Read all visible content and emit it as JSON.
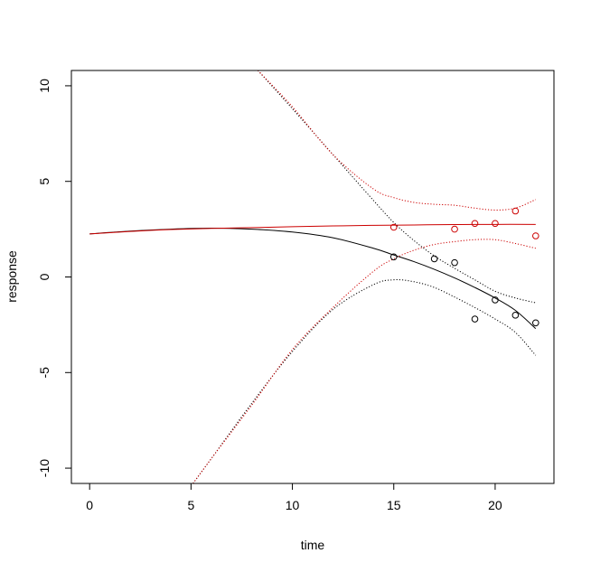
{
  "chart_data": {
    "type": "scatter",
    "title": "",
    "xlabel": "time",
    "ylabel": "response",
    "xlim": [
      -0.9,
      22.9
    ],
    "ylim": [
      -10.8,
      10.8
    ],
    "x_ticks": [
      0,
      5,
      10,
      15,
      20
    ],
    "y_ticks": [
      -10,
      -5,
      0,
      5,
      10
    ],
    "x_tick_labels": [
      "0",
      "5",
      "10",
      "15",
      "20"
    ],
    "y_tick_labels": [
      "-10",
      "-5",
      "0",
      "5",
      "10"
    ],
    "grid": false,
    "legend": "none",
    "colors": {
      "black": "#000000",
      "red": "#cc0000"
    },
    "series": [
      {
        "kind": "points",
        "color": "#000000",
        "x": [
          15,
          17,
          18,
          19,
          20,
          21,
          22
        ],
        "y": [
          1.05,
          0.95,
          0.75,
          -2.2,
          -1.2,
          -2.0,
          -2.4
        ]
      },
      {
        "kind": "points",
        "color": "#cc0000",
        "x": [
          15,
          18,
          19,
          20,
          21,
          22
        ],
        "y": [
          2.6,
          2.5,
          2.8,
          2.8,
          3.45,
          2.15
        ]
      },
      {
        "kind": "line",
        "style": "solid",
        "color": "#000000",
        "x": [
          0,
          2,
          4,
          6,
          8,
          10,
          12,
          14,
          15,
          16,
          17,
          18,
          19,
          20,
          21,
          22
        ],
        "y": [
          2.25,
          2.4,
          2.5,
          2.55,
          2.5,
          2.35,
          2.05,
          1.5,
          1.15,
          0.8,
          0.4,
          -0.05,
          -0.55,
          -1.1,
          -1.75,
          -2.7
        ]
      },
      {
        "kind": "line",
        "style": "solid",
        "color": "#cc0000",
        "x": [
          0,
          2,
          4,
          6,
          8,
          10,
          12,
          14,
          16,
          18,
          20,
          22
        ],
        "y": [
          2.25,
          2.38,
          2.48,
          2.54,
          2.58,
          2.63,
          2.67,
          2.7,
          2.72,
          2.74,
          2.75,
          2.75
        ]
      },
      {
        "kind": "line",
        "style": "dotted",
        "color": "#000000",
        "x": [
          8.3,
          10,
          12,
          14,
          15,
          16,
          17,
          18,
          19,
          20,
          21,
          22
        ],
        "y": [
          10.8,
          8.8,
          6.4,
          4.0,
          2.85,
          1.9,
          1.1,
          0.45,
          -0.15,
          -0.75,
          -1.1,
          -1.35
        ]
      },
      {
        "kind": "line",
        "style": "dotted",
        "color": "#000000",
        "x": [
          5.1,
          6,
          8,
          10,
          12,
          14,
          15,
          16,
          17,
          18,
          19,
          20,
          21,
          22
        ],
        "y": [
          -10.8,
          -9.5,
          -6.6,
          -3.9,
          -1.7,
          -0.4,
          -0.15,
          -0.25,
          -0.55,
          -1.05,
          -1.6,
          -2.2,
          -2.9,
          -4.1
        ]
      },
      {
        "kind": "line",
        "style": "dotted",
        "color": "#cc0000",
        "x": [
          8.3,
          10,
          12,
          14,
          15,
          16,
          17,
          18,
          19,
          20,
          21,
          22
        ],
        "y": [
          10.8,
          8.9,
          6.4,
          4.6,
          4.15,
          3.9,
          3.8,
          3.75,
          3.6,
          3.5,
          3.6,
          4.05
        ]
      },
      {
        "kind": "line",
        "style": "dotted",
        "color": "#cc0000",
        "x": [
          5.1,
          6,
          8,
          10,
          12,
          14,
          15,
          16,
          17,
          18,
          19,
          20,
          21,
          22
        ],
        "y": [
          -10.8,
          -9.5,
          -6.7,
          -3.8,
          -1.6,
          0.3,
          0.95,
          1.4,
          1.7,
          1.85,
          1.95,
          1.95,
          1.75,
          1.5
        ]
      }
    ]
  }
}
